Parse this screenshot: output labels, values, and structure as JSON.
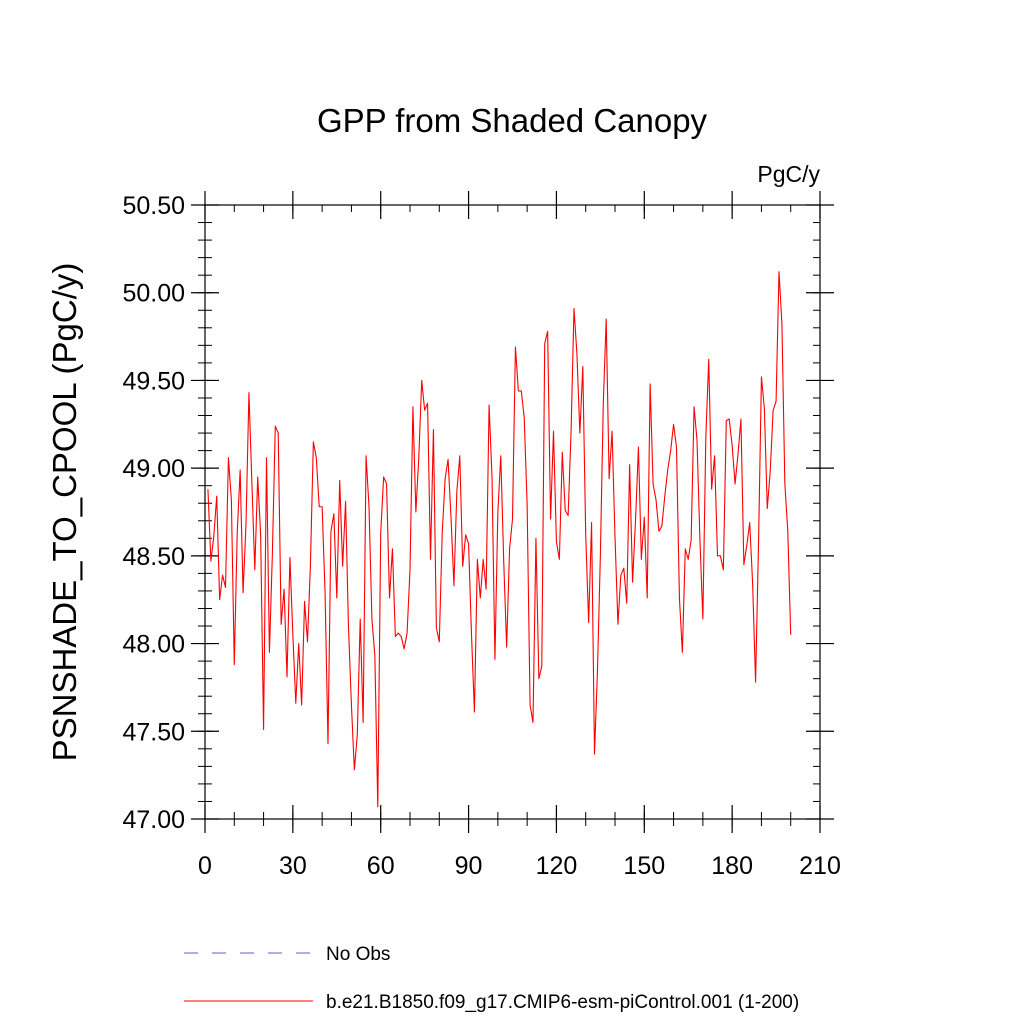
{
  "chart_data": {
    "type": "line",
    "title": "GPP from Shaded Canopy",
    "units_label": "PgC/y",
    "ylabel": "PSNSHADE_TO_CPOOL  (PgC/y)",
    "xlabel": "",
    "xlim": [
      0,
      210
    ],
    "ylim": [
      47.0,
      50.5
    ],
    "xticks": [
      0,
      30,
      60,
      90,
      120,
      150,
      180,
      210
    ],
    "xtick_labels": [
      "0",
      "30",
      "60",
      "90",
      "120",
      "150",
      "180",
      "210"
    ],
    "yticks": [
      47.0,
      47.5,
      48.0,
      48.5,
      49.0,
      49.5,
      50.0,
      50.5
    ],
    "ytick_labels": [
      "47.00",
      "47.50",
      "48.00",
      "48.50",
      "49.00",
      "49.50",
      "50.00",
      "50.50"
    ],
    "legend_position": "bottom",
    "series": [
      {
        "name": "No Obs",
        "color": "#6a5acd",
        "style": "dashed",
        "values": []
      },
      {
        "name": "b.e21.B1850.f09_g17.CMIP6-esm-piControl.001 (1-200)",
        "color": "#ff0000",
        "style": "solid",
        "x_start": 1,
        "values": [
          48.88,
          48.47,
          48.61,
          48.84,
          48.25,
          48.39,
          48.32,
          49.06,
          48.82,
          47.88,
          48.63,
          48.99,
          48.29,
          48.68,
          49.43,
          48.92,
          48.42,
          48.95,
          48.62,
          47.51,
          49.06,
          47.95,
          48.51,
          49.24,
          49.2,
          48.11,
          48.31,
          47.81,
          48.49,
          48.05,
          47.66,
          48.0,
          47.65,
          48.24,
          48.01,
          48.45,
          49.15,
          49.06,
          48.78,
          48.78,
          48.29,
          47.43,
          48.64,
          48.74,
          48.26,
          48.93,
          48.44,
          48.81,
          48.09,
          47.65,
          47.28,
          47.48,
          48.14,
          47.55,
          49.07,
          48.78,
          48.14,
          47.93,
          47.07,
          48.63,
          48.95,
          48.91,
          48.26,
          48.54,
          48.04,
          48.06,
          48.04,
          47.97,
          48.06,
          48.42,
          49.35,
          48.75,
          49.06,
          49.5,
          49.33,
          49.37,
          48.48,
          49.22,
          48.09,
          48.01,
          48.63,
          48.94,
          49.05,
          48.72,
          48.33,
          48.87,
          49.07,
          48.44,
          48.62,
          48.57,
          48.05,
          47.61,
          48.48,
          48.26,
          48.48,
          48.31,
          49.36,
          48.95,
          47.91,
          48.75,
          49.07,
          48.47,
          47.98,
          48.54,
          48.71,
          49.69,
          49.44,
          49.44,
          49.29,
          48.79,
          47.65,
          47.55,
          48.6,
          47.8,
          47.87,
          49.71,
          49.78,
          48.71,
          49.21,
          48.58,
          48.48,
          49.09,
          48.76,
          48.73,
          49.21,
          49.91,
          49.65,
          49.2,
          49.58,
          48.62,
          48.12,
          48.69,
          47.37,
          47.84,
          48.5,
          49.37,
          49.85,
          48.94,
          49.21,
          48.61,
          48.11,
          48.39,
          48.43,
          48.23,
          49.02,
          48.35,
          48.7,
          49.12,
          48.48,
          48.72,
          48.26,
          49.48,
          48.91,
          48.82,
          48.64,
          48.67,
          48.84,
          48.99,
          49.1,
          49.25,
          49.12,
          48.26,
          47.95,
          48.54,
          48.48,
          48.59,
          49.35,
          49.16,
          48.59,
          48.14,
          49.17,
          49.62,
          48.88,
          49.07,
          48.5,
          48.5,
          48.42,
          49.27,
          49.28,
          49.13,
          48.91,
          49.08,
          49.28,
          48.45,
          48.56,
          48.69,
          48.34,
          47.78,
          48.56,
          49.52,
          49.34,
          48.77,
          48.98,
          49.33,
          49.38,
          50.12,
          49.82,
          48.91,
          48.64,
          48.05
        ]
      }
    ]
  }
}
